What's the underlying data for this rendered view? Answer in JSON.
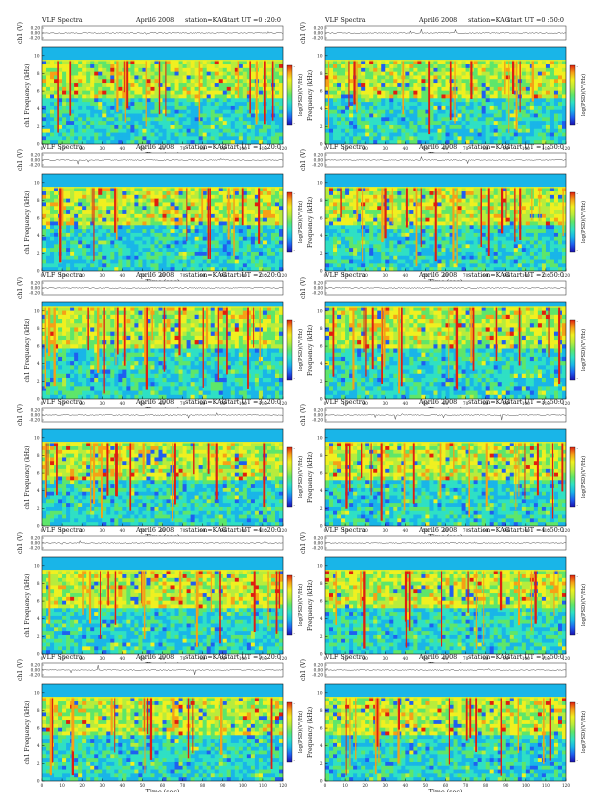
{
  "page": {
    "background": "#ffffff",
    "colormap": [
      "#1a10b0",
      "#1f5ff0",
      "#19b5e8",
      "#2fe0c4",
      "#5ee66a",
      "#b8ec3c",
      "#f0f020",
      "#f6a016",
      "#e01e10",
      "#ffffff"
    ]
  },
  "chart_data": [
    {
      "type": "heatmap",
      "title": "VLF Spectra",
      "date": "April6 2008",
      "station": "station=KAG",
      "start": "start UT =0 :20:0",
      "trace_label": "ch1 (V)",
      "trace_ticks": [
        "0.20",
        "0.00",
        "-0.20"
      ],
      "ylabel": "ch1 Frequency (kHz)",
      "xlabel": "Time (sec)",
      "x_ticks": [
        "0",
        "10",
        "20",
        "30",
        "40",
        "50",
        "60",
        "70",
        "80",
        "90",
        "100",
        "110",
        "120"
      ],
      "y_ticks": [
        "0",
        "2",
        "4",
        "6",
        "8",
        "10"
      ],
      "xlim": [
        0,
        120
      ],
      "ylim": [
        0,
        11
      ],
      "colorbar_label": "log(PSD)(V²/Hz)",
      "colorbar_ticks": [
        "-",
        "-"
      ],
      "cutoff_khz": 9.5
    },
    {
      "type": "heatmap",
      "title": "VLF Spectra",
      "date": "April6 2008",
      "station": "station=KAG",
      "start": "start UT =0 :50:0",
      "trace_label": "ch1 (V)",
      "trace_ticks": [
        "0.20",
        "0.00",
        "-0.20"
      ],
      "ylabel": "Frequency (kHz)",
      "xlabel": "Time (sec)",
      "x_ticks": [
        "0",
        "10",
        "20",
        "30",
        "40",
        "50",
        "60",
        "70",
        "80",
        "90",
        "100",
        "110",
        "120"
      ],
      "y_ticks": [
        "0",
        "2",
        "4",
        "6",
        "8",
        "10"
      ],
      "xlim": [
        0,
        120
      ],
      "ylim": [
        0,
        11
      ],
      "colorbar_label": "log(PSD)(V²/Hz)",
      "colorbar_ticks": [
        "-",
        "-"
      ],
      "cutoff_khz": 9.5
    },
    {
      "type": "heatmap",
      "title": "VLF Spectra",
      "date": "April6 2008",
      "station": "station=KAG",
      "start": "start UT =1 :20:0",
      "trace_label": "ch1 (V)",
      "trace_ticks": [
        "0.20",
        "0.00",
        "-0.20"
      ],
      "ylabel": "ch1 Frequency (kHz)",
      "xlabel": "Time (sec)",
      "x_ticks": [
        "0",
        "10",
        "20",
        "30",
        "40",
        "50",
        "60",
        "70",
        "80",
        "90",
        "100",
        "110",
        "120"
      ],
      "y_ticks": [
        "0",
        "2",
        "4",
        "6",
        "8",
        "10"
      ],
      "xlim": [
        0,
        120
      ],
      "ylim": [
        0,
        11
      ],
      "colorbar_label": "log(PSD)(V²/Hz)",
      "colorbar_ticks": [
        "-",
        "-"
      ],
      "cutoff_khz": 9.5
    },
    {
      "type": "heatmap",
      "title": "VLF Spectra",
      "date": "April6 2008",
      "station": "station=KAG",
      "start": "start UT =1 :50:0",
      "trace_label": "ch1 (V)",
      "trace_ticks": [
        "0.20",
        "0.00",
        "-0.20"
      ],
      "ylabel": "Frequency (kHz)",
      "xlabel": "Time (sec)",
      "x_ticks": [
        "0",
        "10",
        "20",
        "30",
        "40",
        "50",
        "60",
        "70",
        "80",
        "90",
        "100",
        "110",
        "120"
      ],
      "y_ticks": [
        "0",
        "2",
        "4",
        "6",
        "8",
        "10"
      ],
      "xlim": [
        0,
        120
      ],
      "ylim": [
        0,
        11
      ],
      "colorbar_label": "log(PSD)(V²/Hz)",
      "colorbar_ticks": [
        "-",
        "-"
      ],
      "cutoff_khz": 9.5
    },
    {
      "type": "heatmap",
      "title": "VLF Spectra",
      "date": "April6 2008",
      "station": "station=KAG",
      "start": "start UT =2 :20:0",
      "trace_label": "ch1 (V)",
      "trace_ticks": [
        "0.20",
        "0.00",
        "-0.20"
      ],
      "ylabel": "ch1 Frequency (kHz)",
      "xlabel": "Time (sec)",
      "x_ticks": [
        "0",
        "10",
        "20",
        "30",
        "40",
        "50",
        "60",
        "70",
        "80",
        "90",
        "100",
        "110",
        "120"
      ],
      "y_ticks": [
        "0",
        "2",
        "4",
        "6",
        "8",
        "10"
      ],
      "xlim": [
        0,
        120
      ],
      "ylim": [
        0,
        11
      ],
      "colorbar_label": "log(PSD)(V²/Hz)",
      "colorbar_ticks": [
        "-",
        "-"
      ],
      "cutoff_khz": 10.5
    },
    {
      "type": "heatmap",
      "title": "VLF Spectra",
      "date": "April6 2008",
      "station": "station=KAG",
      "start": "start UT =2 :50:0",
      "trace_label": "ch1 (V)",
      "trace_ticks": [
        "0.20",
        "0.00",
        "-0.20"
      ],
      "ylabel": "Frequency (kHz)",
      "xlabel": "Time (sec)",
      "x_ticks": [
        "0",
        "10",
        "20",
        "30",
        "40",
        "50",
        "60",
        "70",
        "80",
        "90",
        "100",
        "110",
        "120"
      ],
      "y_ticks": [
        "0",
        "2",
        "4",
        "6",
        "8",
        "10"
      ],
      "xlim": [
        0,
        120
      ],
      "ylim": [
        0,
        11
      ],
      "colorbar_label": "log(PSD)(V²/Hz)",
      "colorbar_ticks": [
        "-",
        "-"
      ],
      "cutoff_khz": 10.5
    },
    {
      "type": "heatmap",
      "title": "VLF Spectra",
      "date": "April6 2008",
      "station": "station=KAG",
      "start": "start UT =3 :20:0",
      "trace_label": "ch1 (V)",
      "trace_ticks": [
        "0.20",
        "0.00",
        "-0.20"
      ],
      "ylabel": "ch1 Frequency (kHz)",
      "xlabel": "Time (sec)",
      "x_ticks": [
        "0",
        "10",
        "20",
        "30",
        "40",
        "50",
        "60",
        "70",
        "80",
        "90",
        "100",
        "110",
        "120"
      ],
      "y_ticks": [
        "0",
        "2",
        "4",
        "6",
        "8",
        "10"
      ],
      "xlim": [
        0,
        120
      ],
      "ylim": [
        0,
        11
      ],
      "colorbar_label": "log(PSD)(V²/Hz)",
      "colorbar_ticks": [
        "-",
        "-"
      ],
      "cutoff_khz": 9.5
    },
    {
      "type": "heatmap",
      "title": "VLF Spectra",
      "date": "April6 2008",
      "station": "station=KAG",
      "start": "start UT =3 :50:0",
      "trace_label": "ch1 (V)",
      "trace_ticks": [
        "0.20",
        "0.00",
        "-0.20"
      ],
      "ylabel": "Frequency (kHz)",
      "xlabel": "Time (sec)",
      "x_ticks": [
        "0",
        "10",
        "20",
        "30",
        "40",
        "50",
        "60",
        "70",
        "80",
        "90",
        "100",
        "110",
        "120"
      ],
      "y_ticks": [
        "0",
        "2",
        "4",
        "6",
        "8",
        "10"
      ],
      "xlim": [
        0,
        120
      ],
      "ylim": [
        0,
        11
      ],
      "colorbar_label": "log(PSD)(V²/Hz)",
      "colorbar_ticks": [
        "-",
        "-"
      ],
      "cutoff_khz": 9.5
    },
    {
      "type": "heatmap",
      "title": "VLF Spectra",
      "date": "April6 2008",
      "station": "station=KAG",
      "start": "start UT =4 :20:0",
      "trace_label": "ch1 (V)",
      "trace_ticks": [
        "0.20",
        "0.00",
        "-0.20"
      ],
      "ylabel": "ch1 Frequency (kHz)",
      "xlabel": "Time (sec)",
      "x_ticks": [
        "0",
        "10",
        "20",
        "30",
        "40",
        "50",
        "60",
        "70",
        "80",
        "90",
        "100",
        "110",
        "120"
      ],
      "y_ticks": [
        "0",
        "2",
        "4",
        "6",
        "8",
        "10"
      ],
      "xlim": [
        0,
        120
      ],
      "ylim": [
        0,
        11
      ],
      "colorbar_label": "log(PSD)(V²/Hz)",
      "colorbar_ticks": [
        "-",
        "-"
      ],
      "cutoff_khz": 9.5
    },
    {
      "type": "heatmap",
      "title": "VLF Spectra",
      "date": "April6 2008",
      "station": "station=KAG",
      "start": "start UT =4 :50:0",
      "trace_label": "ch1 (V)",
      "trace_ticks": [
        "0.20",
        "0.00",
        "-0.20"
      ],
      "ylabel": "Frequency (kHz)",
      "xlabel": "Time (sec)",
      "x_ticks": [
        "0",
        "10",
        "20",
        "30",
        "40",
        "50",
        "60",
        "70",
        "80",
        "90",
        "100",
        "110",
        "120"
      ],
      "y_ticks": [
        "0",
        "2",
        "4",
        "6",
        "8",
        "10"
      ],
      "xlim": [
        0,
        120
      ],
      "ylim": [
        0,
        11
      ],
      "colorbar_label": "log(PSD)(V²/Hz)",
      "colorbar_ticks": [
        "-",
        "-"
      ],
      "cutoff_khz": 9.5
    },
    {
      "type": "heatmap",
      "title": "VLF Spectra",
      "date": "April6 2008",
      "station": "station=KAG",
      "start": "start UT =5 :20:0",
      "trace_label": "ch1 (V)",
      "trace_ticks": [
        "0.20",
        "0.00",
        "-0.20"
      ],
      "ylabel": "ch1 Frequency (kHz)",
      "xlabel": "Time (sec)",
      "x_ticks": [
        "0",
        "10",
        "20",
        "30",
        "40",
        "50",
        "60",
        "70",
        "80",
        "90",
        "100",
        "110",
        "120"
      ],
      "y_ticks": [
        "0",
        "2",
        "4",
        "6",
        "8",
        "10"
      ],
      "xlim": [
        0,
        120
      ],
      "ylim": [
        0,
        11
      ],
      "colorbar_label": "log(PSD)(V²/Hz)",
      "colorbar_ticks": [
        "-",
        "-"
      ],
      "cutoff_khz": 9.5
    },
    {
      "type": "heatmap",
      "title": "VLF Spectra",
      "date": "April6 2008",
      "station": "station=KAG",
      "start": "start UT =5 :50:0",
      "trace_label": "ch1 (V)",
      "trace_ticks": [
        "0.20",
        "0.00",
        "-0.20"
      ],
      "ylabel": "Frequency (kHz)",
      "xlabel": "Time (sec)",
      "x_ticks": [
        "0",
        "10",
        "20",
        "30",
        "40",
        "50",
        "60",
        "70",
        "80",
        "90",
        "100",
        "110",
        "120"
      ],
      "y_ticks": [
        "0",
        "2",
        "4",
        "6",
        "8",
        "10"
      ],
      "xlim": [
        0,
        120
      ],
      "ylim": [
        0,
        11
      ],
      "colorbar_label": "log(PSD)(V²/Hz)",
      "colorbar_ticks": [
        "-",
        "-"
      ],
      "cutoff_khz": 9.5
    }
  ]
}
